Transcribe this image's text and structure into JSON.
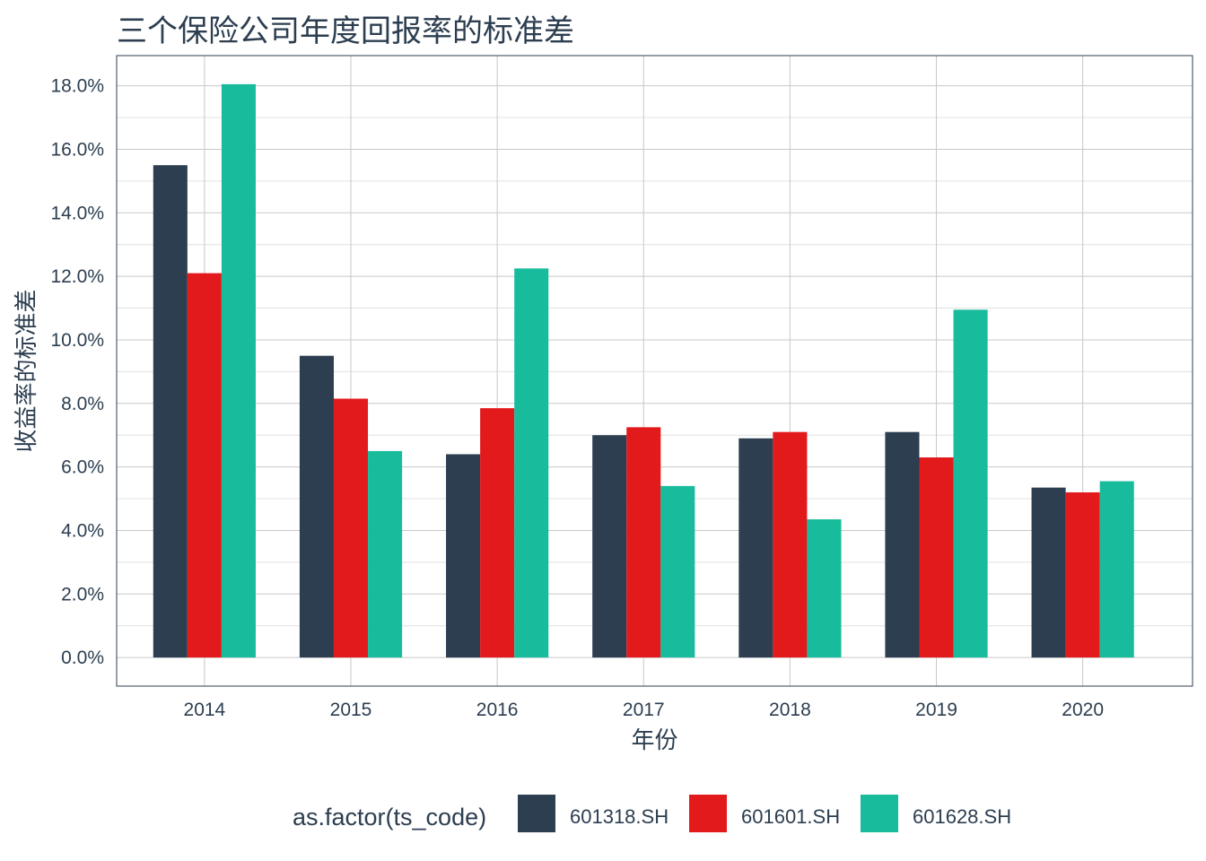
{
  "chart_data": {
    "type": "bar",
    "title": "三个保险公司年度回报率的标准差",
    "xlabel": "年份",
    "ylabel": "收益率的标准差",
    "categories": [
      "2014",
      "2015",
      "2016",
      "2017",
      "2018",
      "2019",
      "2020"
    ],
    "series": [
      {
        "name": "601318.SH",
        "color": "#2c3e50",
        "values": [
          15.5,
          9.5,
          6.4,
          7.0,
          6.9,
          7.1,
          5.35
        ]
      },
      {
        "name": "601601.SH",
        "color": "#e31a1c",
        "values": [
          12.1,
          8.15,
          7.85,
          7.25,
          7.1,
          6.3,
          5.2
        ]
      },
      {
        "name": "601628.SH",
        "color": "#18bc9c",
        "values": [
          18.05,
          6.5,
          12.25,
          5.4,
          4.35,
          10.95,
          5.55
        ]
      }
    ],
    "ylim": [
      -0.9,
      18.95
    ],
    "yticks": [
      0,
      2,
      4,
      6,
      8,
      10,
      12,
      14,
      16,
      18
    ],
    "ytick_labels": [
      "0.0%",
      "2.0%",
      "4.0%",
      "6.0%",
      "8.0%",
      "10.0%",
      "12.0%",
      "14.0%",
      "16.0%",
      "18.0%"
    ],
    "grid": true,
    "legend": {
      "position": "bottom",
      "title": "as.factor(ts_code)"
    }
  }
}
